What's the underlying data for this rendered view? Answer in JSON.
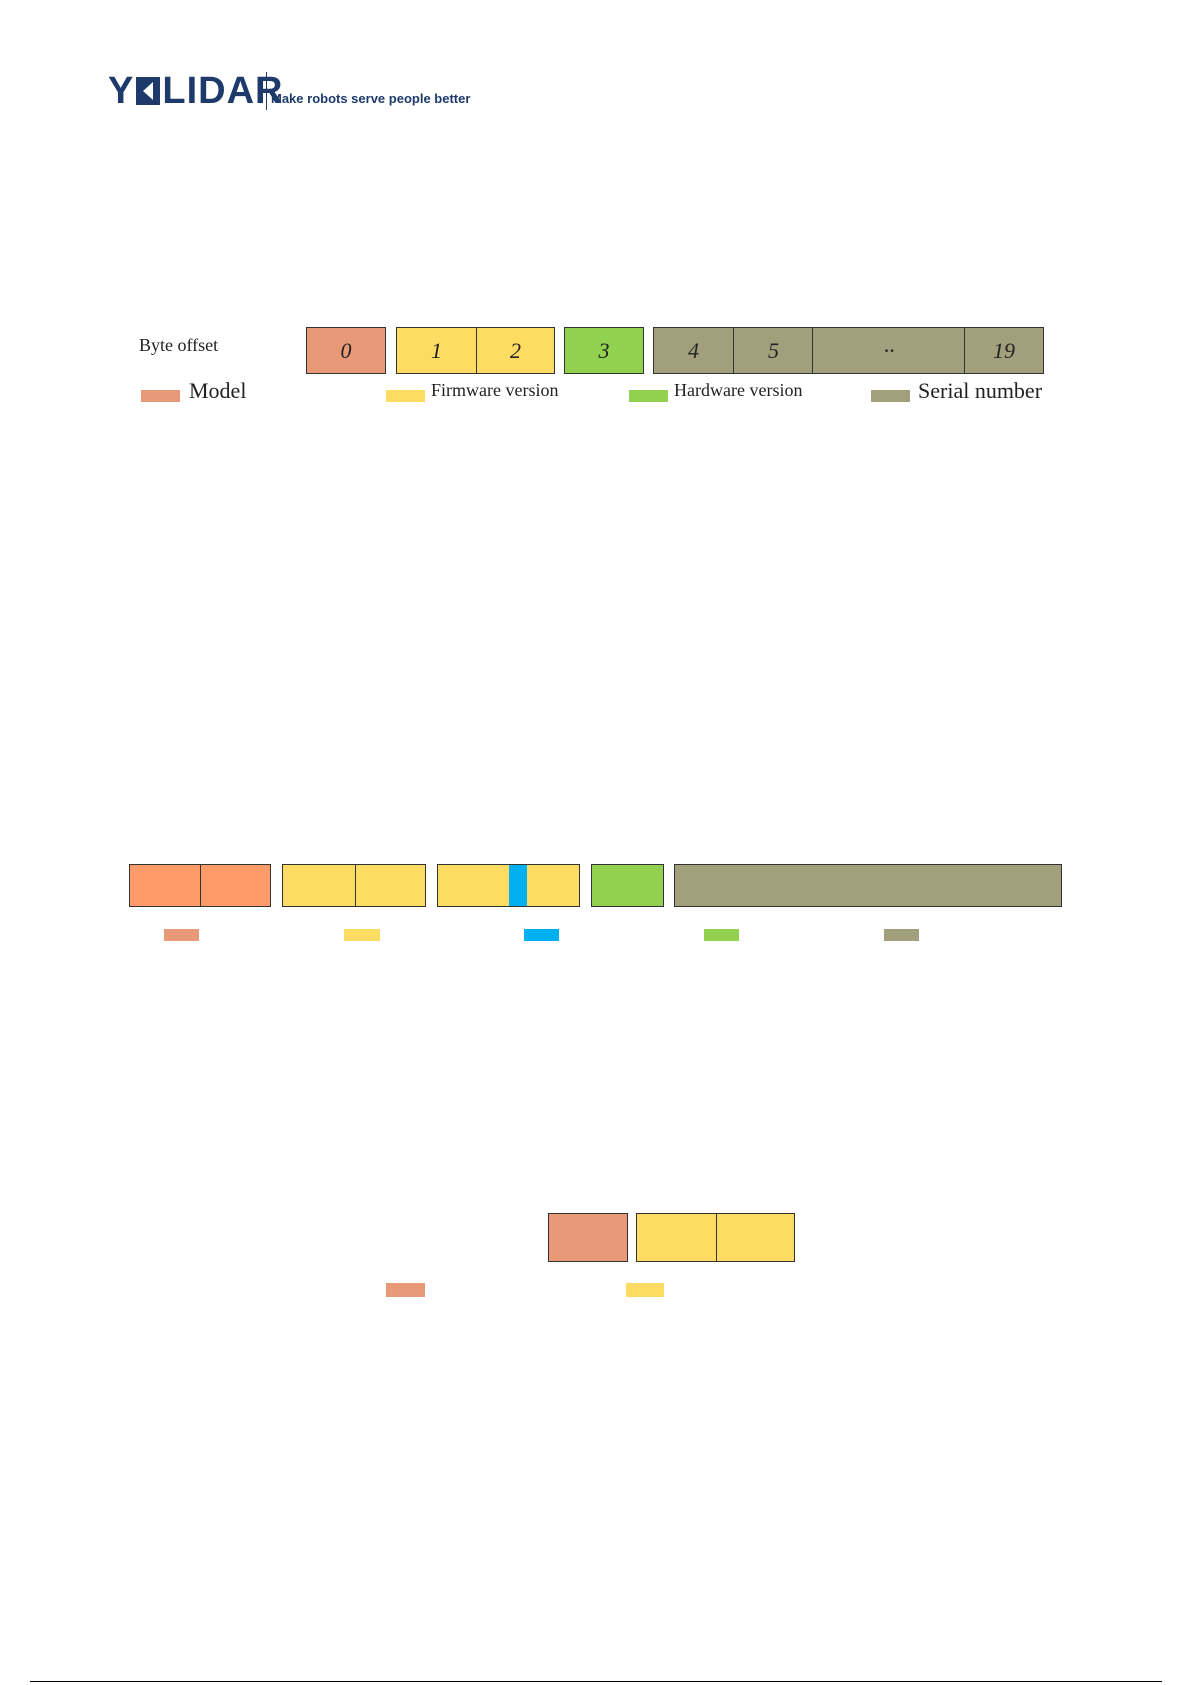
{
  "header": {
    "logo_text_y": "Y",
    "logo_text_rest": "LIDAR",
    "slogan": "Make robots serve people better"
  },
  "diagram1": {
    "row_label": "Byte offset",
    "cells": [
      "0",
      "1",
      "2",
      "3",
      "4",
      "5",
      "··",
      "19"
    ],
    "legend": [
      "Model",
      "Firmware version",
      "Hardware version",
      "Serial number"
    ],
    "colors": {
      "model": "#e89a78",
      "firmware": "#fcdc62",
      "hardware": "#92d050",
      "serial": "#a2a07c"
    }
  },
  "diagram2": {
    "colors": {
      "a": "#fe9b68",
      "b": "#fcdc62",
      "marker": "#00b0f0",
      "c": "#92d050",
      "d": "#a2a07c"
    }
  },
  "diagram3": {
    "colors": {
      "model": "#e89a78",
      "firmware": "#fcdc62"
    }
  }
}
